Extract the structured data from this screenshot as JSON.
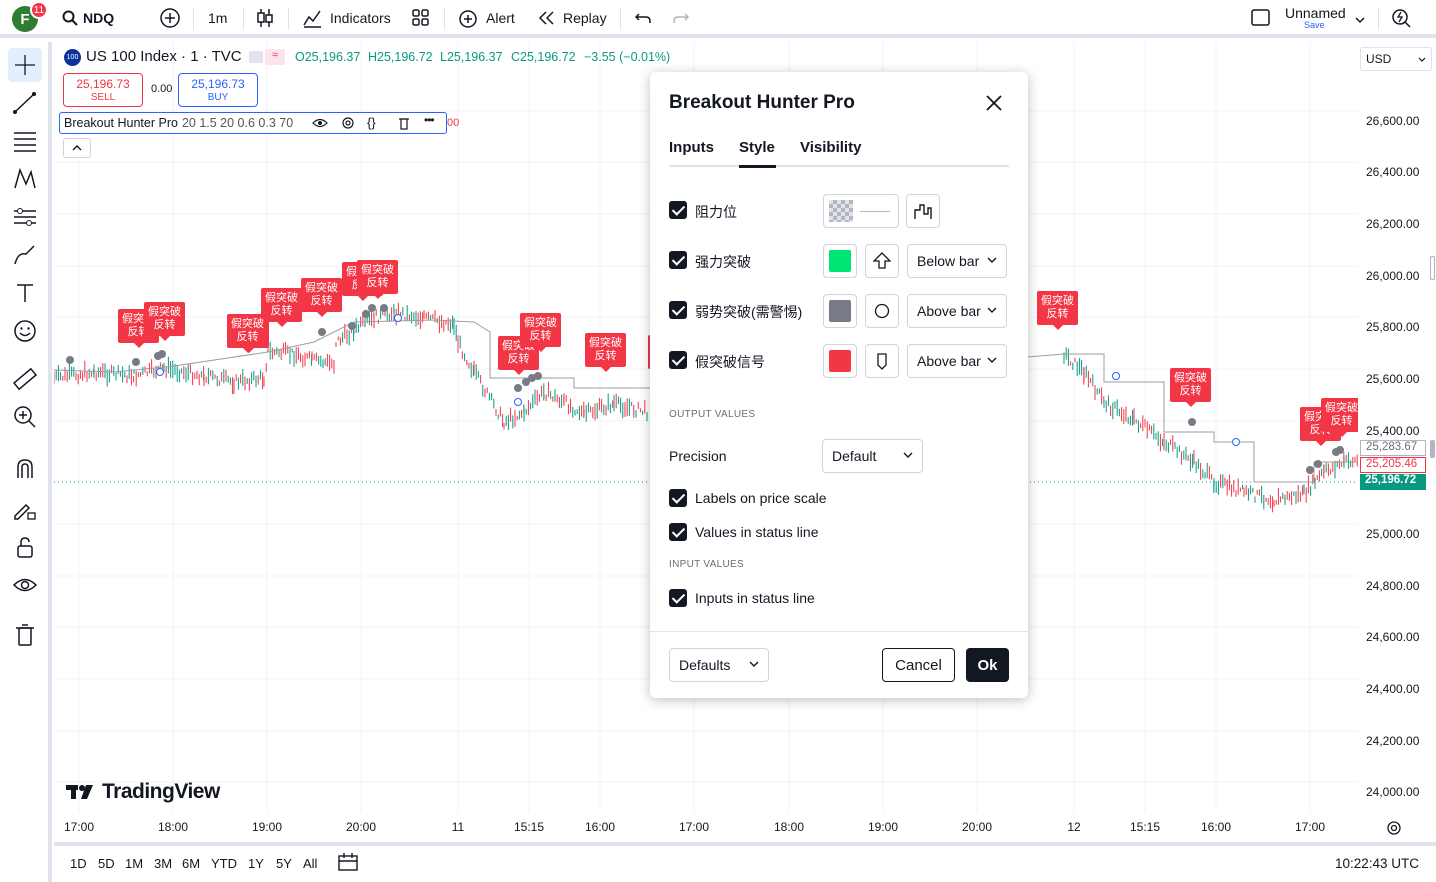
{
  "header": {
    "avatar_letter": "F",
    "notif_count": "11",
    "symbol": "NDQ",
    "interval": "1m",
    "indicators_label": "Indicators",
    "alert_label": "Alert",
    "replay_label": "Replay",
    "layout_name": "Unnamed",
    "layout_save": "Save"
  },
  "legend": {
    "symbol_title": "US 100 Index · 1 · TVC",
    "symbol_badge": "100",
    "open": "O25,196.37",
    "high": "H25,196.72",
    "low": "L25,196.37",
    "close": "C25,196.72",
    "change": "−3.55 (−0.01%)",
    "sell_price": "25,196.73",
    "sell_label": "SELL",
    "spread": "0.00",
    "buy_price": "25,196.73",
    "buy_label": "BUY",
    "indicator_name": "Breakout Hunter Pro",
    "indicator_params": "20 1.5 20 0.6 0.3 70",
    "indicator_tail": "00"
  },
  "price_scale": {
    "currency": "USD",
    "ticks": [
      "26,600.00",
      "26,400.00",
      "26,200.00",
      "26,000.00",
      "25,800.00",
      "25,600.00",
      "25,400.00",
      "25,000.00",
      "24,800.00",
      "24,600.00",
      "24,400.00",
      "24,200.00",
      "24,000.00"
    ],
    "tag_top": "25,283.67",
    "tag_mid": "25,205.46",
    "tag_last": "25,196.72"
  },
  "time_axis": {
    "ticks": [
      "17:00",
      "18:00",
      "19:00",
      "20:00",
      "11",
      "15:15",
      "16:00",
      "17:00",
      "18:00",
      "19:00",
      "20:00",
      "12",
      "15:15",
      "16:00",
      "17:00"
    ]
  },
  "bottom": {
    "ranges": [
      "1D",
      "5D",
      "1M",
      "3M",
      "6M",
      "YTD",
      "1Y",
      "5Y",
      "All"
    ],
    "clock": "10:22:43 UTC"
  },
  "watermark": "TradingView",
  "chart_labels": {
    "text_line1": "假突破",
    "text_line2": "反转"
  },
  "dialog": {
    "title": "Breakout Hunter Pro",
    "tabs": [
      "Inputs",
      "Style",
      "Visibility"
    ],
    "active_tab": "Style",
    "rows": [
      {
        "label": "阻力位",
        "color": "#9e9e9e"
      },
      {
        "label": "强力突破",
        "color": "#00e676",
        "shape": "arrow-up-icon",
        "location": "Below bar"
      },
      {
        "label": "弱势突破(需警惕)",
        "color": "#787b86",
        "shape": "circle-icon",
        "location": "Above bar"
      },
      {
        "label": "假突破信号",
        "color": "#f23645",
        "shape": "label-shape-icon",
        "location": "Above bar"
      }
    ],
    "output_values_header": "OUTPUT VALUES",
    "precision_label": "Precision",
    "precision_value": "Default",
    "labels_on_price_scale": "Labels on price scale",
    "values_in_status_line": "Values in status line",
    "input_values_header": "INPUT VALUES",
    "inputs_in_status_line": "Inputs in status line",
    "defaults_label": "Defaults",
    "cancel_label": "Cancel",
    "ok_label": "Ok"
  }
}
